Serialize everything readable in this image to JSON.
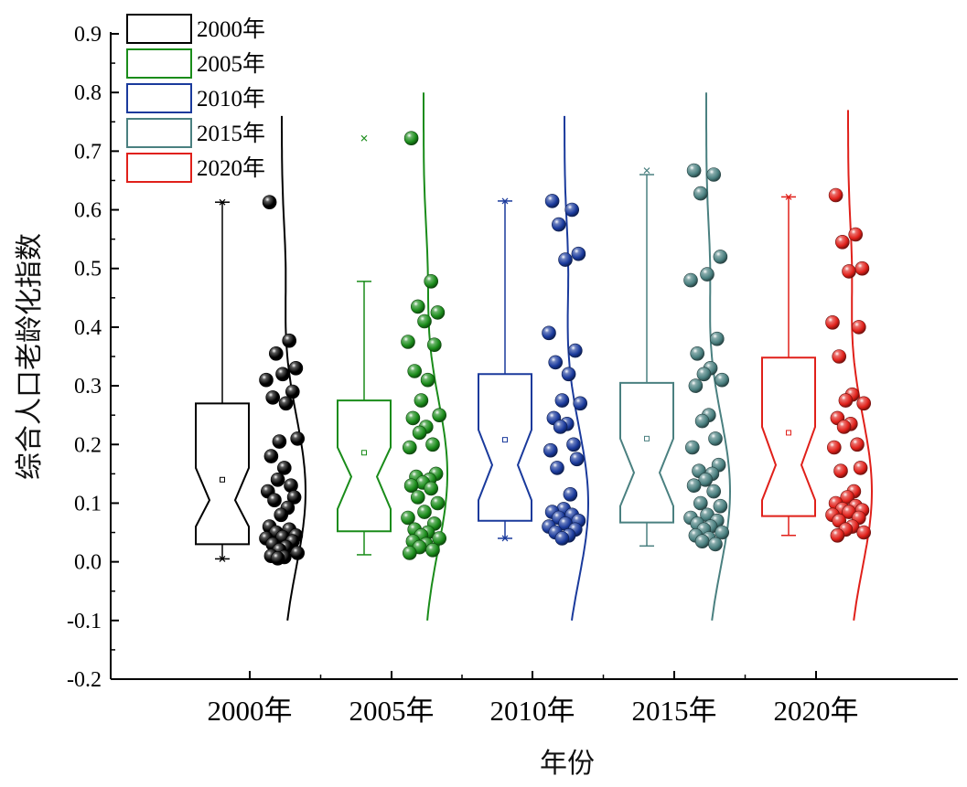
{
  "chart_data": {
    "type": "box",
    "xlabel": "年份",
    "ylabel": "综合人口老龄化指数",
    "ylim": [
      -0.2,
      0.9
    ],
    "yticks": [
      "-0.2",
      "-0.1",
      "0.0",
      "0.1",
      "0.2",
      "0.3",
      "0.4",
      "0.5",
      "0.6",
      "0.7",
      "0.8",
      "0.9"
    ],
    "categories": [
      "2000年",
      "2005年",
      "2010年",
      "2015年",
      "2020年"
    ],
    "legend_position": "top-left",
    "series": [
      {
        "name": "2000年",
        "color": "#000000",
        "whisker_low": 0.005,
        "q1": 0.03,
        "median": 0.105,
        "q3": 0.27,
        "whisker_high": 0.613,
        "notch_low": 0.06,
        "notch_high": 0.16,
        "mean": 0.14,
        "outliers_x": [
          0.005,
          0.613
        ],
        "points": [
          0.613,
          0.377,
          0.355,
          0.33,
          0.32,
          0.31,
          0.29,
          0.28,
          0.27,
          0.205,
          0.21,
          0.18,
          0.16,
          0.14,
          0.13,
          0.12,
          0.11,
          0.105,
          0.092,
          0.08,
          0.06,
          0.055,
          0.05,
          0.045,
          0.042,
          0.04,
          0.035,
          0.03,
          0.025,
          0.02,
          0.015,
          0.01,
          0.008,
          0.006
        ],
        "density_peak": 0.12
      },
      {
        "name": "2005年",
        "color": "#1a8c1a",
        "whisker_low": 0.012,
        "q1": 0.052,
        "median": 0.145,
        "q3": 0.275,
        "whisker_high": 0.478,
        "notch_low": 0.09,
        "notch_high": 0.195,
        "mean": 0.186,
        "outliers_x": [
          0.722
        ],
        "points": [
          0.722,
          0.478,
          0.435,
          0.425,
          0.41,
          0.375,
          0.37,
          0.325,
          0.31,
          0.275,
          0.25,
          0.245,
          0.23,
          0.22,
          0.2,
          0.195,
          0.15,
          0.145,
          0.14,
          0.135,
          0.13,
          0.125,
          0.11,
          0.1,
          0.085,
          0.075,
          0.065,
          0.055,
          0.05,
          0.045,
          0.04,
          0.035,
          0.03,
          0.025,
          0.02,
          0.015
        ],
        "density_peak": 0.15
      },
      {
        "name": "2010年",
        "color": "#1a3a9c",
        "whisker_low": 0.04,
        "q1": 0.07,
        "median": 0.165,
        "q3": 0.32,
        "whisker_high": 0.615,
        "notch_low": 0.105,
        "notch_high": 0.225,
        "mean": 0.208,
        "outliers_x": [
          0.04,
          0.615
        ],
        "points": [
          0.615,
          0.6,
          0.575,
          0.525,
          0.515,
          0.39,
          0.36,
          0.34,
          0.32,
          0.275,
          0.27,
          0.245,
          0.235,
          0.23,
          0.2,
          0.19,
          0.175,
          0.16,
          0.115,
          0.09,
          0.085,
          0.08,
          0.075,
          0.07,
          0.065,
          0.06,
          0.055,
          0.05,
          0.045,
          0.04
        ],
        "density_peak": 0.1
      },
      {
        "name": "2015年",
        "color": "#4a8080",
        "whisker_low": 0.027,
        "q1": 0.067,
        "median": 0.152,
        "q3": 0.305,
        "whisker_high": 0.66,
        "notch_low": 0.095,
        "notch_high": 0.21,
        "mean": 0.21,
        "outliers_x": [
          0.667
        ],
        "points": [
          0.667,
          0.66,
          0.628,
          0.52,
          0.49,
          0.48,
          0.38,
          0.355,
          0.33,
          0.32,
          0.31,
          0.3,
          0.25,
          0.24,
          0.21,
          0.195,
          0.165,
          0.155,
          0.15,
          0.14,
          0.13,
          0.12,
          0.1,
          0.095,
          0.08,
          0.075,
          0.07,
          0.065,
          0.06,
          0.055,
          0.05,
          0.045,
          0.04,
          0.035,
          0.03
        ],
        "density_peak": 0.12
      },
      {
        "name": "2020年",
        "color": "#e0201a",
        "whisker_low": 0.045,
        "q1": 0.078,
        "median": 0.165,
        "q3": 0.348,
        "whisker_high": 0.622,
        "notch_low": 0.105,
        "notch_high": 0.23,
        "mean": 0.22,
        "outliers_x": [
          0.622
        ],
        "points": [
          0.625,
          0.558,
          0.545,
          0.5,
          0.495,
          0.408,
          0.4,
          0.35,
          0.285,
          0.275,
          0.27,
          0.245,
          0.235,
          0.23,
          0.2,
          0.195,
          0.16,
          0.155,
          0.12,
          0.11,
          0.1,
          0.095,
          0.09,
          0.088,
          0.085,
          0.08,
          0.075,
          0.07,
          0.06,
          0.055,
          0.05,
          0.045
        ],
        "density_peak": 0.12
      }
    ]
  }
}
